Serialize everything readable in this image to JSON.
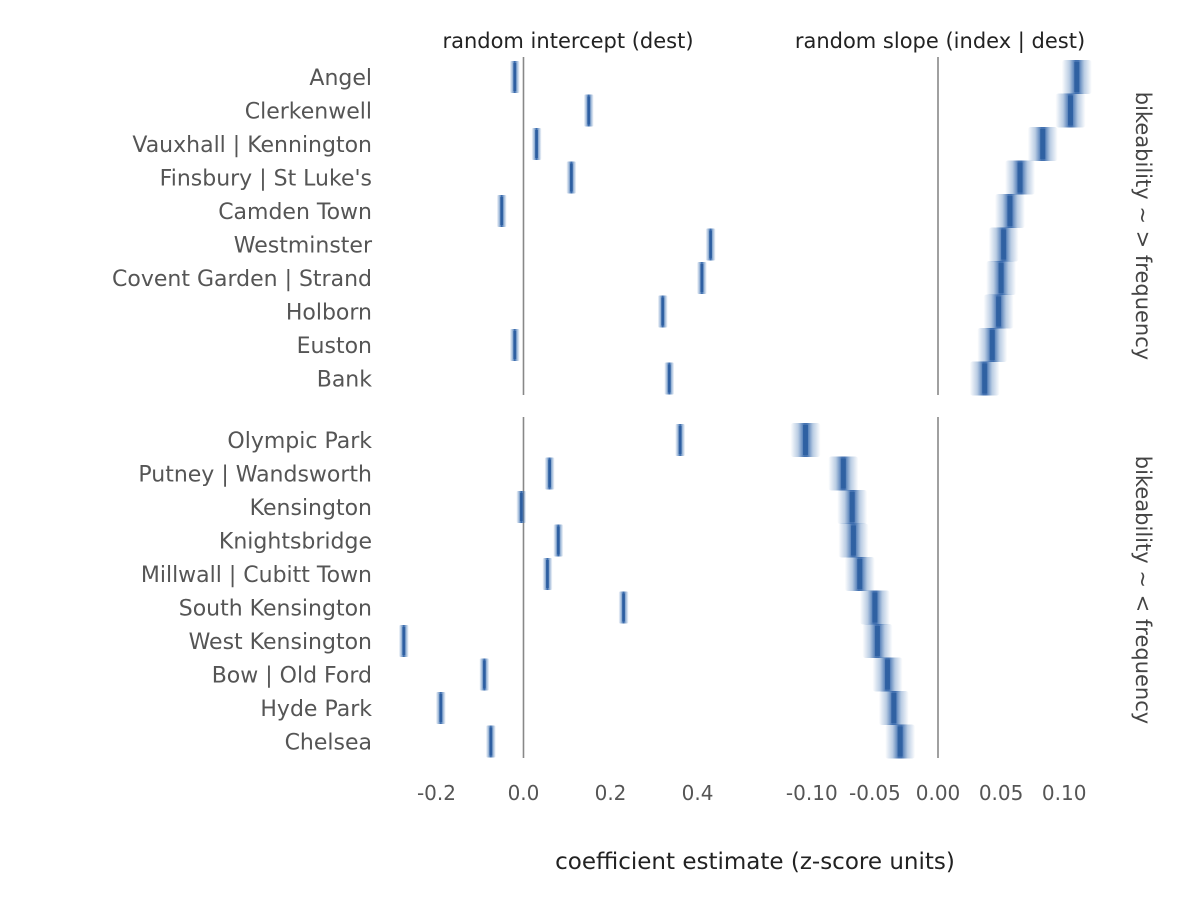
{
  "chart_data": {
    "type": "scatter",
    "xlabel": "coefficient estimate (z-score units)",
    "color": "#3a6fb0",
    "zero_line_color": "#888888",
    "columns": [
      {
        "title": "random intercept (dest)",
        "xlim": [
          -0.27,
          0.47
        ],
        "ticks": [
          "-0.2",
          "0.0",
          "0.2",
          "0.4"
        ],
        "tick_values": [
          -0.2,
          0.0,
          0.2,
          0.4
        ]
      },
      {
        "title": "random slope (index | dest)",
        "xlim": [
          -0.126,
          0.126
        ],
        "ticks": [
          "-0.10",
          "-0.05",
          "0.00",
          "0.05",
          "0.10"
        ],
        "tick_values": [
          -0.1,
          -0.05,
          0.0,
          0.05,
          0.1
        ]
      }
    ],
    "groups": [
      {
        "strip": "bikeability ~ > frequency",
        "categories": [
          "Angel",
          "Clerkenwell",
          "Vauxhall | Kennington",
          "Finsbury | St Luke's",
          "Camden Town",
          "Westminster",
          "Covent Garden | Strand",
          "Holborn",
          "Euston",
          "Bank"
        ],
        "intercept": [
          -0.02,
          0.15,
          0.03,
          0.11,
          -0.05,
          0.43,
          0.41,
          0.32,
          -0.02,
          0.335
        ],
        "slope": [
          0.11,
          0.105,
          0.083,
          0.065,
          0.057,
          0.052,
          0.05,
          0.048,
          0.043,
          0.037
        ]
      },
      {
        "strip": "bikeability ~ < frequency",
        "categories": [
          "Olympic Park",
          "Putney | Wandsworth",
          "Kensington",
          "Knightsbridge",
          "Millwall | Cubitt Town",
          "South Kensington",
          "West Kensington",
          "Bow | Old Ford",
          "Hyde Park",
          "Chelsea"
        ],
        "intercept": [
          0.36,
          0.06,
          -0.005,
          0.08,
          0.055,
          0.23,
          -0.275,
          -0.09,
          -0.19,
          -0.075
        ],
        "slope": [
          -0.105,
          -0.075,
          -0.068,
          -0.067,
          -0.062,
          -0.05,
          -0.048,
          -0.04,
          -0.035,
          -0.03
        ]
      }
    ]
  }
}
